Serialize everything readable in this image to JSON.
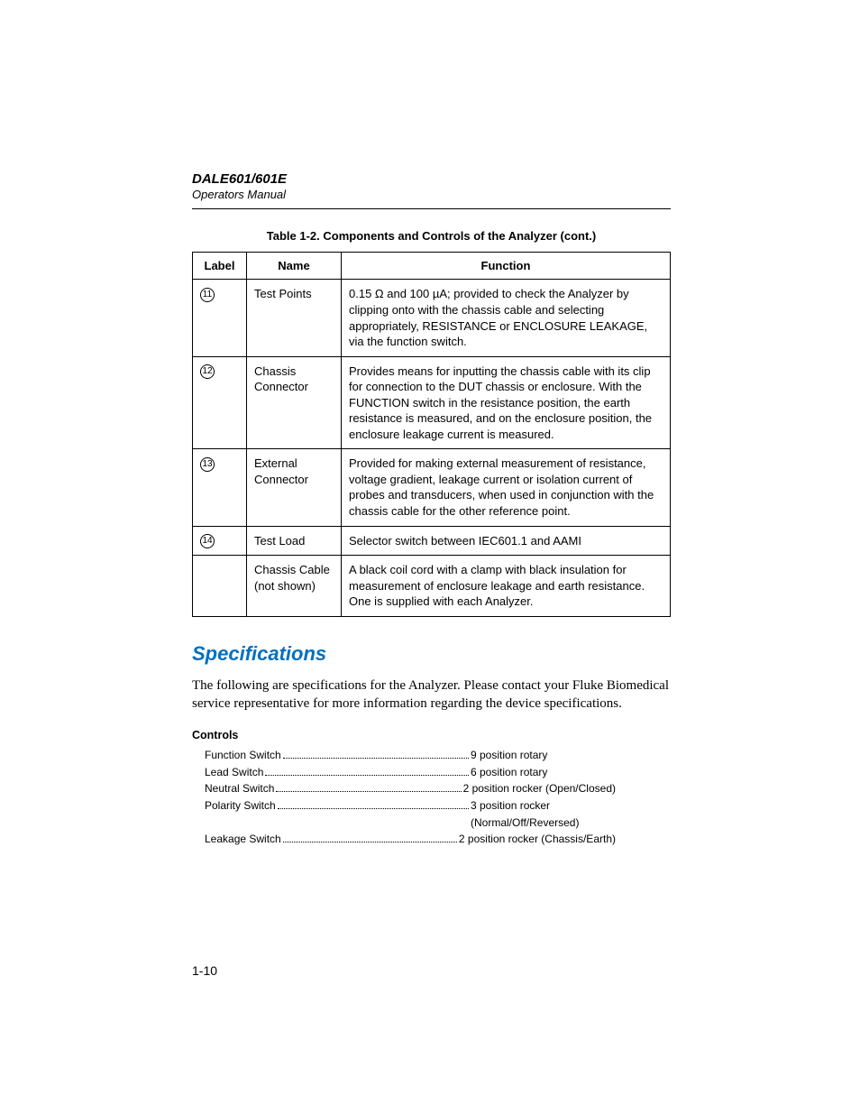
{
  "header": {
    "product": "DALE601/601E",
    "subtitle": "Operators Manual"
  },
  "table": {
    "caption": "Table 1-2. Components and Controls of the Analyzer (cont.)",
    "columns": [
      "Label",
      "Name",
      "Function"
    ],
    "rows": [
      {
        "label": "11",
        "name": "Test Points",
        "function": "0.15 Ω and 100 µA; provided to check the Analyzer by clipping onto with the chassis cable and selecting appropriately, RESISTANCE or ENCLOSURE LEAKAGE, via the function switch."
      },
      {
        "label": "12",
        "name": "Chassis Connector",
        "function": "Provides means for inputting the chassis cable with its clip for connection to the DUT chassis or enclosure. With the FUNCTION switch in the resistance position, the earth resistance is measured, and on the enclosure position, the enclosure leakage current is measured."
      },
      {
        "label": "13",
        "name": "External Connector",
        "function": "Provided for making external measurement of resistance, voltage gradient, leakage current or isolation current of probes and transducers, when used in conjunction with the chassis cable for the other reference point."
      },
      {
        "label": "14",
        "name": "Test Load",
        "function": "Selector switch between IEC601.1 and AAMI"
      },
      {
        "label": "",
        "name": "Chassis Cable (not shown)",
        "function": "A black coil cord with a clamp with black insulation for measurement of enclosure leakage and earth resistance. One is supplied with each Analyzer."
      }
    ]
  },
  "section": {
    "heading": "Specifications",
    "heading_color": "#0070c0",
    "paragraph": "The following are specifications for the Analyzer. Please contact your Fluke Biomedical service representative for more information regarding the device specifications."
  },
  "specs": {
    "group_title": "Controls",
    "items": [
      {
        "label": "Function Switch",
        "value": "9 position rotary"
      },
      {
        "label": "Lead Switch",
        "value": "6 position rotary"
      },
      {
        "label": "Neutral Switch",
        "value": "2 position rocker (Open/Closed)"
      },
      {
        "label": "Polarity Switch",
        "value": "3 position rocker",
        "value_cont": "(Normal/Off/Reversed)"
      },
      {
        "label": "Leakage Switch",
        "value": "2 position rocker (Chassis/Earth)"
      }
    ]
  },
  "page_number": "1-10"
}
